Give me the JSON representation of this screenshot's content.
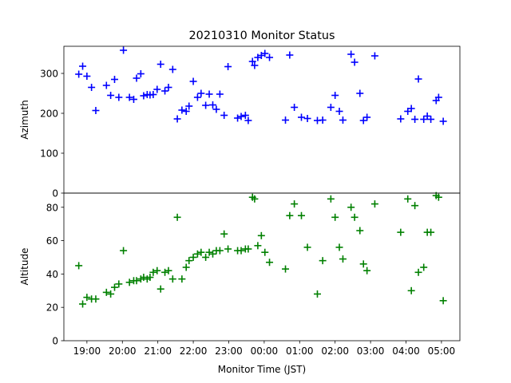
{
  "chart_data": {
    "title": "20210310 Monitor Status",
    "xlabel": "Monitor Time (JST)",
    "x_ticks": [
      "19:00",
      "20:00",
      "21:00",
      "22:00",
      "23:00",
      "00:00",
      "01:00",
      "02:00",
      "03:00",
      "04:00",
      "05:00"
    ],
    "x_tick_hours": [
      19,
      20,
      21,
      22,
      23,
      24,
      25,
      26,
      27,
      28,
      29
    ],
    "xlim_hours": [
      18.35,
      29.52
    ],
    "grid": false,
    "panels": [
      {
        "type": "scatter",
        "ylabel": "Azimuth",
        "ylim": [
          0,
          368
        ],
        "yticks": [
          0,
          100,
          200,
          300
        ],
        "color": "#0000ff",
        "marker": "+",
        "points": [
          [
            18.77,
            298
          ],
          [
            18.88,
            318
          ],
          [
            19.0,
            293
          ],
          [
            19.13,
            265
          ],
          [
            19.25,
            207
          ],
          [
            19.55,
            270
          ],
          [
            19.67,
            245
          ],
          [
            19.78,
            285
          ],
          [
            19.9,
            240
          ],
          [
            20.03,
            358
          ],
          [
            20.2,
            240
          ],
          [
            20.32,
            235
          ],
          [
            20.4,
            288
          ],
          [
            20.52,
            299
          ],
          [
            20.6,
            244
          ],
          [
            20.7,
            247
          ],
          [
            20.78,
            246
          ],
          [
            20.87,
            247
          ],
          [
            20.98,
            260
          ],
          [
            21.08,
            323
          ],
          [
            21.2,
            256
          ],
          [
            21.3,
            265
          ],
          [
            21.42,
            310
          ],
          [
            21.55,
            186
          ],
          [
            21.68,
            208
          ],
          [
            21.8,
            205
          ],
          [
            21.88,
            218
          ],
          [
            22.0,
            280
          ],
          [
            22.12,
            240
          ],
          [
            22.22,
            250
          ],
          [
            22.35,
            220
          ],
          [
            22.45,
            248
          ],
          [
            22.55,
            221
          ],
          [
            22.65,
            210
          ],
          [
            22.75,
            248
          ],
          [
            22.87,
            195
          ],
          [
            22.98,
            317
          ],
          [
            23.25,
            188
          ],
          [
            23.35,
            192
          ],
          [
            23.47,
            195
          ],
          [
            23.55,
            182
          ],
          [
            23.67,
            330
          ],
          [
            23.73,
            320
          ],
          [
            23.82,
            340
          ],
          [
            23.92,
            345
          ],
          [
            24.02,
            350
          ],
          [
            24.15,
            340
          ],
          [
            24.6,
            183
          ],
          [
            24.72,
            346
          ],
          [
            24.85,
            215
          ],
          [
            25.05,
            190
          ],
          [
            25.22,
            187
          ],
          [
            25.5,
            182
          ],
          [
            25.65,
            183
          ],
          [
            25.88,
            215
          ],
          [
            26.0,
            245
          ],
          [
            26.12,
            205
          ],
          [
            26.22,
            183
          ],
          [
            26.45,
            348
          ],
          [
            26.55,
            328
          ],
          [
            26.7,
            250
          ],
          [
            26.8,
            182
          ],
          [
            26.9,
            190
          ],
          [
            27.12,
            344
          ],
          [
            27.85,
            186
          ],
          [
            28.05,
            205
          ],
          [
            28.15,
            212
          ],
          [
            28.25,
            185
          ],
          [
            28.35,
            286
          ],
          [
            28.5,
            185
          ],
          [
            28.6,
            193
          ],
          [
            28.7,
            185
          ],
          [
            28.85,
            232
          ],
          [
            28.92,
            240
          ],
          [
            29.05,
            180
          ]
        ]
      },
      {
        "type": "scatter",
        "ylabel": "Altitude",
        "ylim": [
          0,
          88.5
        ],
        "yticks": [
          0,
          20,
          40,
          60,
          80
        ],
        "color": "#008000",
        "marker": "+",
        "points": [
          [
            18.77,
            45
          ],
          [
            18.88,
            22
          ],
          [
            19.0,
            26
          ],
          [
            19.13,
            25
          ],
          [
            19.25,
            25
          ],
          [
            19.55,
            29
          ],
          [
            19.67,
            28
          ],
          [
            19.78,
            32
          ],
          [
            19.9,
            34
          ],
          [
            20.03,
            54
          ],
          [
            20.2,
            35
          ],
          [
            20.32,
            36
          ],
          [
            20.4,
            36
          ],
          [
            20.52,
            37
          ],
          [
            20.6,
            38
          ],
          [
            20.7,
            37
          ],
          [
            20.78,
            38
          ],
          [
            20.87,
            41
          ],
          [
            20.98,
            42
          ],
          [
            21.08,
            31
          ],
          [
            21.2,
            41
          ],
          [
            21.3,
            42
          ],
          [
            21.42,
            37
          ],
          [
            21.55,
            74
          ],
          [
            21.68,
            37
          ],
          [
            21.8,
            44
          ],
          [
            21.88,
            48
          ],
          [
            22.0,
            50
          ],
          [
            22.12,
            52
          ],
          [
            22.22,
            53
          ],
          [
            22.35,
            50
          ],
          [
            22.45,
            53
          ],
          [
            22.55,
            52
          ],
          [
            22.65,
            54
          ],
          [
            22.75,
            54
          ],
          [
            22.87,
            64
          ],
          [
            22.98,
            55
          ],
          [
            23.25,
            54
          ],
          [
            23.35,
            54
          ],
          [
            23.47,
            55
          ],
          [
            23.55,
            55
          ],
          [
            23.67,
            86
          ],
          [
            23.73,
            85
          ],
          [
            23.82,
            57
          ],
          [
            23.92,
            63
          ],
          [
            24.02,
            53
          ],
          [
            24.15,
            47
          ],
          [
            24.6,
            43
          ],
          [
            24.72,
            75
          ],
          [
            24.85,
            82
          ],
          [
            25.05,
            75
          ],
          [
            25.22,
            56
          ],
          [
            25.5,
            28
          ],
          [
            25.65,
            48
          ],
          [
            25.88,
            85
          ],
          [
            26.0,
            74
          ],
          [
            26.12,
            56
          ],
          [
            26.22,
            49
          ],
          [
            26.45,
            80
          ],
          [
            26.55,
            74
          ],
          [
            26.7,
            66
          ],
          [
            26.8,
            46
          ],
          [
            26.9,
            42
          ],
          [
            27.12,
            82
          ],
          [
            27.85,
            65
          ],
          [
            28.05,
            85
          ],
          [
            28.15,
            30
          ],
          [
            28.25,
            81
          ],
          [
            28.35,
            41
          ],
          [
            28.5,
            44
          ],
          [
            28.6,
            65
          ],
          [
            28.7,
            65
          ],
          [
            28.85,
            87
          ],
          [
            28.92,
            86
          ],
          [
            29.05,
            24
          ]
        ]
      }
    ]
  }
}
